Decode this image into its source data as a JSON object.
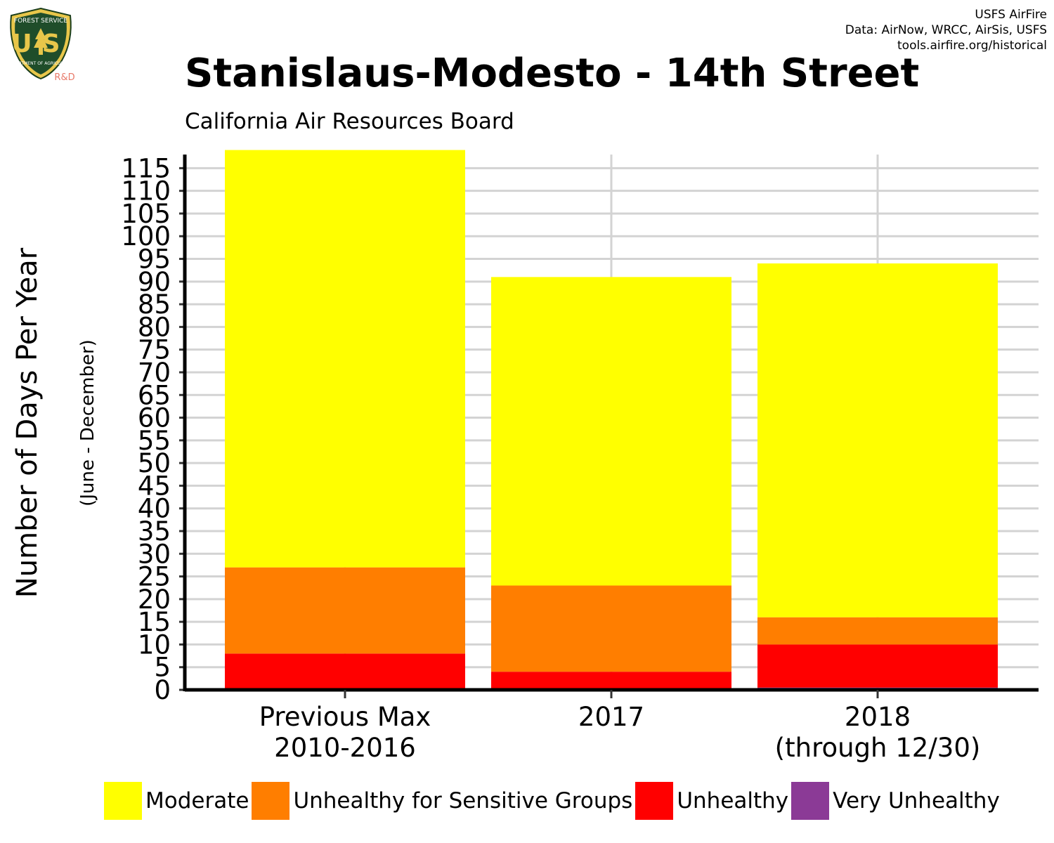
{
  "header": {
    "title": "Stanislaus-Modesto - 14th Street",
    "subtitle": "California Air Resources Board",
    "credits": [
      "USFS AirFire",
      "Data: AirNow, WRCC, AirSis, USFS",
      "tools.airfire.org/historical"
    ]
  },
  "logo": {
    "top_text": "FOREST SERVICE",
    "main_text": "US",
    "bottom_text": "DEPARTMENT OF AGRICULTURE",
    "badge": "R&D"
  },
  "chart_data": {
    "type": "bar",
    "stacked": true,
    "title": "Stanislaus-Modesto - 14th Street",
    "subtitle": "California Air Resources Board",
    "ylabel": "Number of Days Per Year",
    "ylabel_sub": "(June - December)",
    "ylim": [
      0,
      118
    ],
    "yticks": [
      0,
      5,
      10,
      15,
      20,
      25,
      30,
      35,
      40,
      45,
      50,
      55,
      60,
      65,
      70,
      75,
      80,
      85,
      90,
      95,
      100,
      105,
      110,
      115
    ],
    "grid": true,
    "legend_position": "bottom",
    "categories": [
      [
        "Previous Max",
        "2010-2016"
      ],
      [
        "2017"
      ],
      [
        "2018",
        "(through 12/30)"
      ]
    ],
    "series": [
      {
        "name": "Very Unhealthy",
        "color": "#8B3A96",
        "values": [
          0,
          0,
          0.5
        ]
      },
      {
        "name": "Unhealthy",
        "color": "#FF0000",
        "values": [
          8,
          4,
          9.5
        ]
      },
      {
        "name": "Unhealthy for Sensitive Groups",
        "color": "#FF7E00",
        "values": [
          19,
          19,
          6
        ]
      },
      {
        "name": "Moderate",
        "color": "#FFFF00",
        "values": [
          92,
          68,
          78
        ]
      }
    ]
  },
  "legend": [
    {
      "name": "Moderate",
      "color": "#FFFF00"
    },
    {
      "name": "Unhealthy for Sensitive Groups",
      "color": "#FF7E00"
    },
    {
      "name": "Unhealthy",
      "color": "#FF0000"
    },
    {
      "name": "Very Unhealthy",
      "color": "#8B3A96"
    }
  ]
}
